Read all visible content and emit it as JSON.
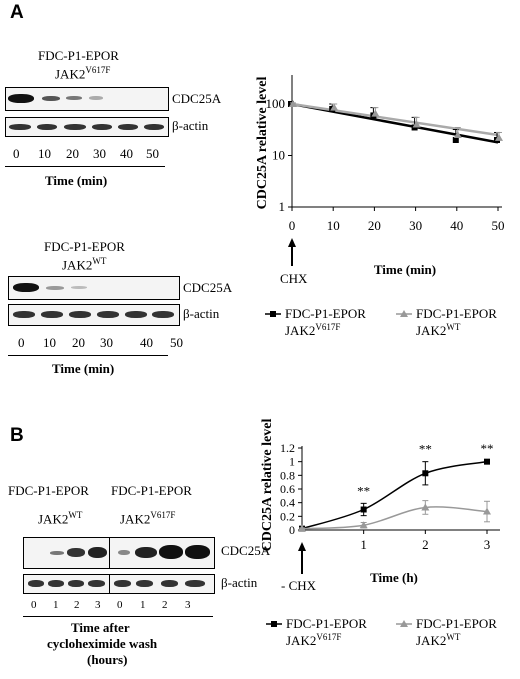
{
  "panelA": {
    "label": "A",
    "blot1": {
      "line1": "FDC-P1-EPOR",
      "gene": "JAK2",
      "allele": "V617F",
      "protein": "CDC25A",
      "loading": "β-actin",
      "lanes": [
        "0",
        "10",
        "20",
        "30",
        "40",
        "50"
      ],
      "time_label": "Time (min)"
    },
    "blot2": {
      "line1": "FDC-P1-EPOR",
      "gene": "JAK2",
      "allele": "WT",
      "protein": "CDC25A",
      "loading": "β-actin",
      "lanes": [
        "0",
        "10",
        "20",
        "30",
        "40",
        "50"
      ],
      "time_label": "Time (min)"
    }
  },
  "panelB": {
    "label": "B",
    "blot": {
      "line_left": "FDC-P1-EPOR",
      "line_right": "FDC-P1-EPOR",
      "gene": "JAK2",
      "allele_left": "WT",
      "allele_right": "V617F",
      "protein": "CDC25A",
      "loading": "β-actin",
      "lanes": [
        "0",
        "1",
        "2",
        "3"
      ],
      "time_label_1": "Time after",
      "time_label_2": "cycloheximide wash",
      "time_label_3": "(hours)"
    }
  },
  "chart_data": [
    {
      "type": "line",
      "panel": "A",
      "title": "",
      "ylabel": "CDC25A relative level",
      "xlabel": "Time (min)",
      "scale_y": "log",
      "ylim": [
        1,
        100
      ],
      "xlim": [
        0,
        50
      ],
      "x_ticks": [
        "0",
        "10",
        "20",
        "30",
        "40",
        "50"
      ],
      "y_ticks": [
        "1",
        "10",
        "100"
      ],
      "arrow_label": "CHX",
      "arrow_x": 0,
      "x": [
        0,
        10,
        20,
        30,
        40,
        50
      ],
      "series": [
        {
          "name": "FDC-P1-EPOR JAK2V617F",
          "name_main": "FDC-P1-EPOR",
          "name_gene": "JAK2",
          "name_allele": "V617F",
          "color": "#000000",
          "marker": "square",
          "values": [
            100,
            80,
            60,
            35,
            20,
            20
          ],
          "err": [
            5,
            20,
            25,
            20,
            12,
            8
          ]
        },
        {
          "name": "FDC-P1-EPOR JAK2WT",
          "name_main": "FDC-P1-EPOR",
          "name_gene": "JAK2",
          "name_allele": "WT",
          "color": "#999999",
          "marker": "triangle",
          "values": [
            100,
            85,
            65,
            40,
            25,
            22
          ],
          "err": [
            5,
            15,
            20,
            15,
            10,
            6
          ]
        }
      ],
      "fit_lines": [
        {
          "color": "#000000",
          "from": 100,
          "to": 18
        },
        {
          "color": "#aaaaaa",
          "from": 100,
          "to": 25
        }
      ],
      "legend": "bottom"
    },
    {
      "type": "line",
      "panel": "B",
      "title": "",
      "ylabel": "CDC25A relative level",
      "xlabel": "Time (h)",
      "ylim": [
        0,
        1.2
      ],
      "xlim": [
        0,
        3
      ],
      "x_ticks": [
        "1",
        "2",
        "3"
      ],
      "y_ticks": [
        "0",
        "0.2",
        "0.4",
        "0.6",
        "0.8",
        "1",
        "1.2"
      ],
      "arrow_label": "- CHX",
      "arrow_x": 0,
      "x": [
        0,
        1,
        2,
        3
      ],
      "series": [
        {
          "name": "FDC-P1-EPOR JAK2V617F",
          "name_main": "FDC-P1-EPOR",
          "name_gene": "JAK2",
          "name_allele": "V617F",
          "color": "#000000",
          "marker": "square",
          "values": [
            0.02,
            0.3,
            0.83,
            1.0
          ],
          "err": [
            0.01,
            0.09,
            0.17,
            0.01
          ]
        },
        {
          "name": "FDC-P1-EPOR JAK2WT",
          "name_main": "FDC-P1-EPOR",
          "name_gene": "JAK2",
          "name_allele": "WT",
          "color": "#999999",
          "marker": "triangle",
          "values": [
            0.02,
            0.07,
            0.33,
            0.27
          ],
          "err": [
            0.01,
            0.04,
            0.1,
            0.15
          ]
        }
      ],
      "significance": [
        {
          "x": 1,
          "label": "**"
        },
        {
          "x": 2,
          "label": "**"
        },
        {
          "x": 3,
          "label": "**"
        }
      ],
      "legend": "bottom"
    }
  ]
}
